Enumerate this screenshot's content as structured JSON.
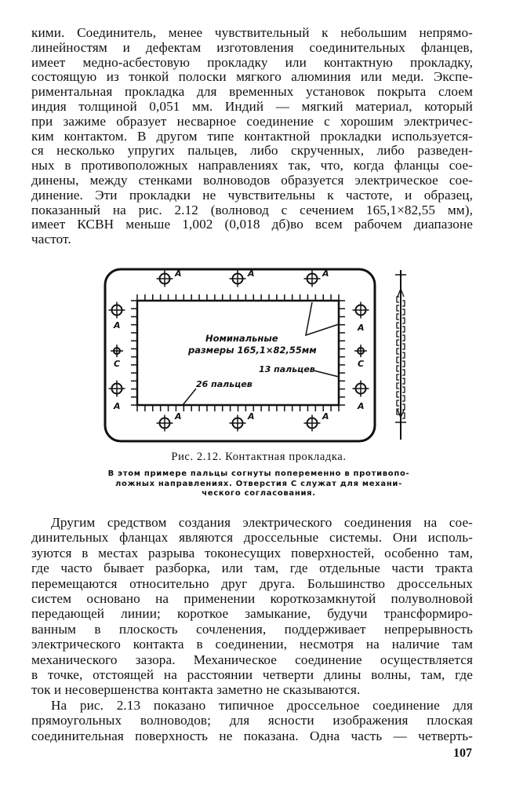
{
  "paragraph_top": [
    "кими. Соединитель, менее чувствительный к небольшим непрямо-",
    "линейностям и дефектам изготовления соединительных фланцев,",
    "имеет медно-асбестовую прокладку или контактную прокладку,",
    "состоящую из тонкой полоски мягкого алюминия или меди. Экспе-",
    "риментальная прокладка для временных установок покрыта слоем",
    "индия толщиной 0,051 мм. Индий — мягкий материал, который",
    "при зажиме образует несварное соединение с хорошим электричес-",
    "ким контактом. В другом типе контактной прокладки используется-",
    "ся несколько упругих пальцев, либо скрученных, либо разведен-",
    "ных в противоположных направлениях так, что, когда фланцы сое-",
    "динены, между стенками волноводов образуется электрическое сое-",
    "динение. Эти прокладки не чувствительны к частоте, и образец,",
    "показанный на рис. 2.12 (волновод с сечением 165,1×82,55 мм),",
    "имеет КСВН меньше 1,002 (0,018 дб)во всем рабочем диапазоне",
    "частот."
  ],
  "figure": {
    "labels": {
      "hole_a": "A",
      "hole_c": "C",
      "nominal_line1": "Номинальные",
      "nominal_line2": "размеры 165,1×82,55мм",
      "fingers_side": "13 пальцев",
      "fingers_bottom": "26 пальцев"
    },
    "caption_title": "Рис. 2.12. Контактная прокладка.",
    "caption_note": [
      "В этом примере пальцы согнуты попеременно в противопо-",
      "ложных направлениях. Отверстия C служат для механи-",
      "ческого согласования."
    ]
  },
  "paragraph_bottom": [
    "Другим средством создания электрического соединения на сое-",
    "динительных фланцах являются дроссельные системы. Они исполь-",
    "зуются в местах разрыва токонесущих поверхностей, особенно там,",
    "где часто бывает разборка, или там, где отдельные части тракта",
    "перемещаются относительно друг друга. Большинство дроссельных",
    "систем основано на применении короткозамкнутой полуволновой",
    "передающей линии; короткое замыкание, будучи трансформиро-",
    "ванным в плоскость сочленения, поддерживает непрерывность",
    "электрического контакта в соединении, несмотря на наличие там",
    "механического зазора. Механическое соединение осуществляется",
    "в точке, отстоящей на расстоянии четверти длины волны, там, где",
    "ток и несовершенства контакта заметно не сказываются.",
    "На рис. 2.13 показано типичное дроссельное соединение для",
    "прямоугольных волноводов; для ясности изображения плоская",
    "соединительная поверхность не показана. Одна часть — четверть-"
  ],
  "page_number": "107"
}
